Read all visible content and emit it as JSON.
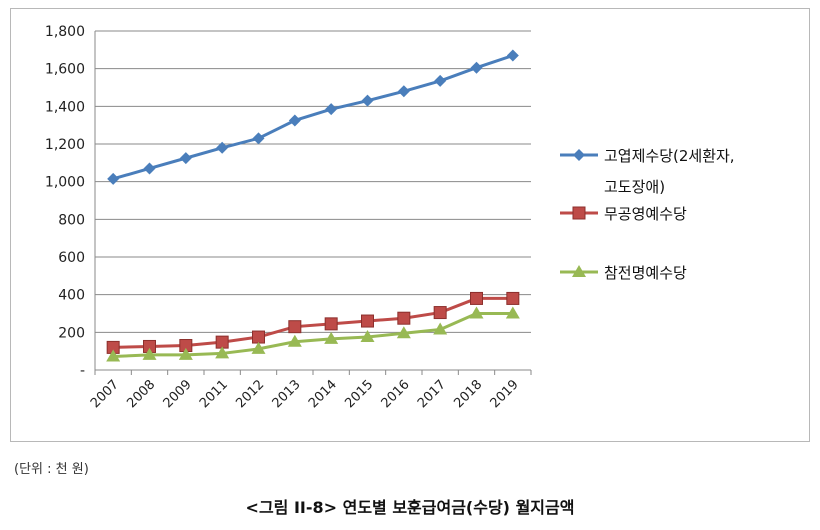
{
  "chart_data": {
    "type": "line",
    "categories": [
      "2007",
      "2008",
      "2009",
      "2011",
      "2012",
      "2013",
      "2014",
      "2015",
      "2016",
      "2017",
      "2018",
      "2019"
    ],
    "series": [
      {
        "name": "고엽제수당(2세환자, 고도장애)",
        "color": "#4a7ebb",
        "marker": "diamond",
        "values": [
          1015,
          1070,
          1125,
          1180,
          1230,
          1325,
          1385,
          1430,
          1480,
          1535,
          1605,
          1670
        ]
      },
      {
        "name": "무공영예수당",
        "color": "#be4b48",
        "marker": "square",
        "values": [
          120,
          125,
          130,
          148,
          175,
          230,
          245,
          260,
          275,
          305,
          380,
          380
        ]
      },
      {
        "name": "참전명예수당",
        "color": "#98b954",
        "marker": "triangle",
        "values": [
          72,
          80,
          80,
          88,
          112,
          150,
          165,
          175,
          195,
          215,
          300,
          300
        ]
      }
    ],
    "yticks": [
      "-",
      "200",
      "400",
      "600",
      "800",
      "1,000",
      "1,200",
      "1,400",
      "1,600",
      "1,800"
    ],
    "ylim": [
      0,
      1800
    ],
    "grid": true,
    "legend": "right"
  },
  "legend_lines": [
    [
      "고엽제수당(2세환자,",
      "고도장애)"
    ],
    [
      "무공영예수당"
    ],
    [
      "참전명예수당"
    ]
  ],
  "unit_note": "(단위 : 천 원)",
  "caption": "<그림 II-8> 연도별 보훈급여금(수당) 월지금액"
}
